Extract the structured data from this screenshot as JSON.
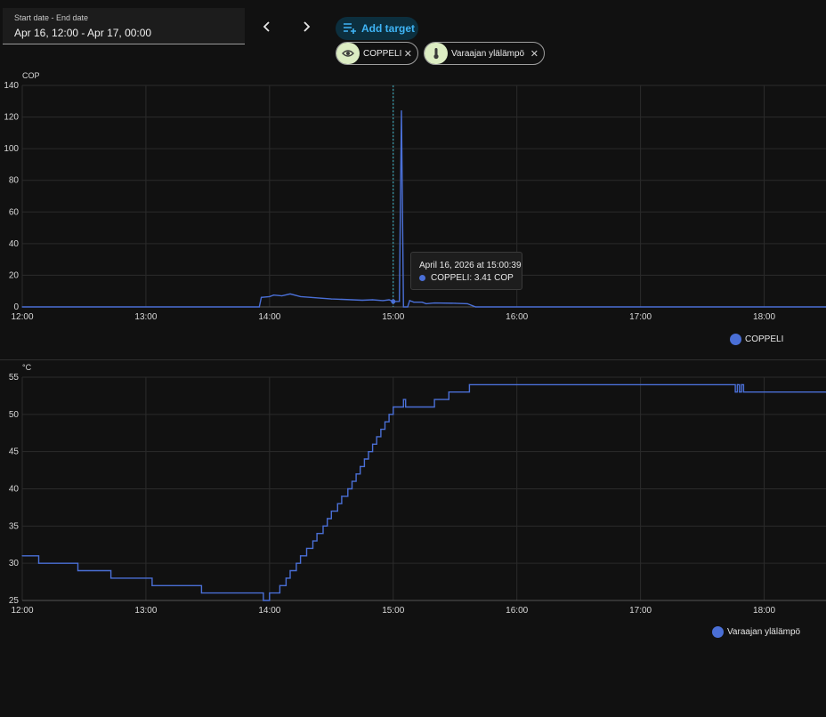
{
  "date_picker": {
    "label": "Start date - End date",
    "value": "Apr 16, 12:00 - Apr 17, 00:00"
  },
  "toolbar": {
    "add_target": "Add target"
  },
  "targets": [
    {
      "label": "COPPELI",
      "icon": "eye-icon"
    },
    {
      "label": "Varaajan ylälämpö",
      "icon": "thermometer-icon"
    }
  ],
  "line_color": "#4a6fd6",
  "tooltip": {
    "time": "April 16, 2026 at 15:00:39",
    "value_text": "COPPELI: 3.41 COP"
  },
  "chart_data": [
    {
      "type": "line",
      "ylabel": "COP",
      "ylim": [
        0,
        140
      ],
      "yticks": [
        0,
        20,
        40,
        60,
        80,
        100,
        120,
        140
      ],
      "xlim": [
        "12:00",
        "18:30"
      ],
      "xticks": [
        "12:00",
        "13:00",
        "14:00",
        "15:00",
        "16:00",
        "17:00",
        "18:00"
      ],
      "cursor_time": "15:00",
      "series": [
        {
          "name": "COPPELI",
          "points": [
            [
              "12:00",
              0
            ],
            [
              "13:55",
              0
            ],
            [
              "13:56",
              6
            ],
            [
              "14:00",
              6.5
            ],
            [
              "14:02",
              7.5
            ],
            [
              "14:06",
              7
            ],
            [
              "14:10",
              8.2
            ],
            [
              "14:15",
              6.5
            ],
            [
              "14:20",
              6
            ],
            [
              "14:25",
              5.5
            ],
            [
              "14:30",
              5
            ],
            [
              "14:35",
              4.8
            ],
            [
              "14:40",
              4.5
            ],
            [
              "14:45",
              4.2
            ],
            [
              "14:50",
              4.5
            ],
            [
              "14:55",
              4
            ],
            [
              "14:58",
              4.5
            ],
            [
              "15:00",
              3.41
            ],
            [
              "15:03",
              3.5
            ],
            [
              "15:04",
              124
            ],
            [
              "15:05",
              0
            ],
            [
              "15:07",
              0
            ],
            [
              "15:08",
              4
            ],
            [
              "15:10",
              3
            ],
            [
              "15:14",
              3
            ],
            [
              "15:16",
              2
            ],
            [
              "15:20",
              2.5
            ],
            [
              "15:30",
              2.3
            ],
            [
              "15:36",
              2
            ],
            [
              "15:40",
              0
            ],
            [
              "18:30",
              0
            ]
          ]
        }
      ]
    },
    {
      "type": "line",
      "ylabel": "°C",
      "ylim": [
        25,
        55
      ],
      "yticks": [
        25,
        30,
        35,
        40,
        45,
        50,
        55
      ],
      "xlim": [
        "12:00",
        "18:30"
      ],
      "xticks": [
        "12:00",
        "13:00",
        "14:00",
        "15:00",
        "16:00",
        "17:00",
        "18:00"
      ],
      "step": true,
      "series": [
        {
          "name": "Varaajan ylälämpö",
          "points": [
            [
              "12:00",
              31
            ],
            [
              "12:08",
              30
            ],
            [
              "12:27",
              29
            ],
            [
              "12:43",
              28
            ],
            [
              "13:03",
              27
            ],
            [
              "13:27",
              26
            ],
            [
              "13:57",
              25
            ],
            [
              "14:00",
              26
            ],
            [
              "14:05",
              27
            ],
            [
              "14:08",
              28
            ],
            [
              "14:10",
              29
            ],
            [
              "14:13",
              30
            ],
            [
              "14:15",
              31
            ],
            [
              "14:18",
              32
            ],
            [
              "14:21",
              33
            ],
            [
              "14:23",
              34
            ],
            [
              "14:26",
              35
            ],
            [
              "14:28",
              36
            ],
            [
              "14:30",
              37
            ],
            [
              "14:33",
              38
            ],
            [
              "14:35",
              39
            ],
            [
              "14:38",
              40
            ],
            [
              "14:40",
              41
            ],
            [
              "14:42",
              42
            ],
            [
              "14:44",
              43
            ],
            [
              "14:46",
              44
            ],
            [
              "14:48",
              45
            ],
            [
              "14:50",
              46
            ],
            [
              "14:52",
              47
            ],
            [
              "14:54",
              48
            ],
            [
              "14:56",
              49
            ],
            [
              "14:58",
              50
            ],
            [
              "15:00",
              51
            ],
            [
              "15:05",
              52
            ],
            [
              "15:06",
              51
            ],
            [
              "15:20",
              52
            ],
            [
              "15:27",
              53
            ],
            [
              "15:37",
              54
            ],
            [
              "17:46",
              53
            ],
            [
              "17:47",
              54
            ],
            [
              "17:48",
              53
            ],
            [
              "17:49",
              54
            ],
            [
              "17:50",
              53
            ],
            [
              "18:30",
              53
            ]
          ]
        }
      ]
    }
  ]
}
